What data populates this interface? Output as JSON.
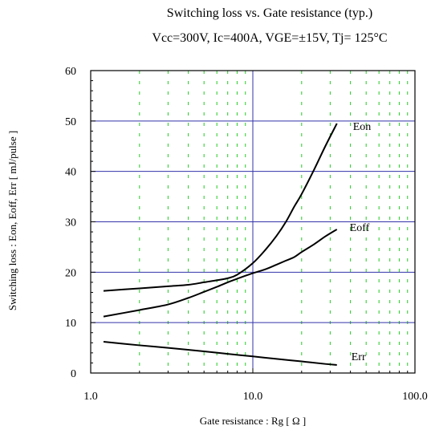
{
  "chart_data": {
    "type": "line",
    "title": "Switching loss  vs.  Gate resistance (typ.)",
    "subtitle": "Vcc=300V, Ic=400A, VGE=±15V, Tj= 125°C",
    "xlabel": "Gate resistance  :  Rg  [ Ω ]",
    "ylabel": "Switching loss  :  Eon, Eoff, Err  [ mJ/pulse ]",
    "x_scale": "log",
    "xlim": [
      1,
      100
    ],
    "ylim": [
      0,
      60
    ],
    "x_ticks": [
      1,
      10,
      100
    ],
    "x_tick_labels": [
      "1.0",
      "10.0",
      "100.0"
    ],
    "y_ticks": [
      0,
      10,
      20,
      30,
      40,
      50,
      60
    ],
    "y_tick_labels": [
      "0",
      "10",
      "20",
      "30",
      "40",
      "50",
      "60"
    ],
    "grid": true,
    "colors": {
      "major_grid": "#3333aa",
      "minor_grid": "#22cc22",
      "series": "#000000",
      "axis": "#000000"
    },
    "series": [
      {
        "name": "Eon",
        "x": [
          1.2,
          2,
          3,
          4,
          5,
          6,
          7,
          8,
          10,
          12,
          14,
          16,
          18,
          20,
          24,
          28,
          33
        ],
        "y": [
          16.3,
          16.8,
          17.2,
          17.5,
          18,
          18.4,
          18.8,
          19.5,
          21.8,
          24.5,
          27.2,
          30,
          33,
          35.5,
          40.5,
          45,
          49.5
        ]
      },
      {
        "name": "Eoff",
        "x": [
          1.2,
          2,
          3,
          4,
          5,
          6,
          7,
          8,
          10,
          12,
          14,
          16,
          18,
          20,
          24,
          28,
          33
        ],
        "y": [
          11.2,
          12.5,
          13.6,
          14.9,
          16.1,
          17.1,
          18,
          18.7,
          19.8,
          20.6,
          21.5,
          22.3,
          23,
          24,
          25.6,
          27.1,
          28.5
        ]
      },
      {
        "name": "Err",
        "x": [
          1.2,
          2,
          3,
          5,
          7,
          10,
          14,
          20,
          28,
          33
        ],
        "y": [
          6.2,
          5.5,
          5,
          4.3,
          3.8,
          3.3,
          2.8,
          2.3,
          1.8,
          1.6
        ]
      }
    ]
  }
}
